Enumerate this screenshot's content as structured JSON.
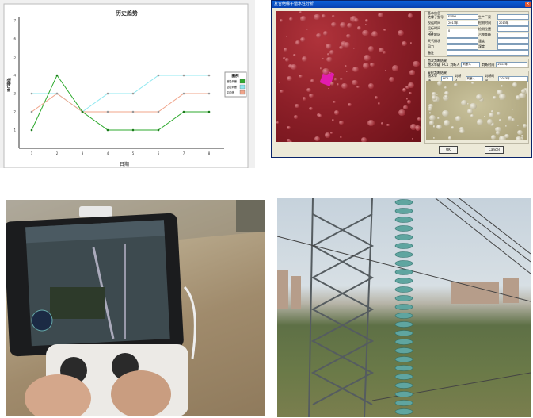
{
  "chart_data": {
    "type": "line",
    "title": "历史趋势",
    "xlabel": "日期",
    "ylabel": "HC等级",
    "x": [
      1,
      2,
      3,
      4,
      5,
      6,
      7,
      8
    ],
    "ylim": [
      0,
      7
    ],
    "yticks": [
      1,
      2,
      3,
      4,
      5,
      6,
      7
    ],
    "grid": false,
    "legend_title": "图例",
    "legend_placement": "right",
    "series": [
      {
        "name": "首检判断",
        "color": "#2eaa2e",
        "values": [
          1,
          4,
          2,
          1,
          1,
          1,
          2,
          2
        ]
      },
      {
        "name": "复检判断",
        "color": "#8fe8f0",
        "values": [
          3,
          3,
          2,
          3,
          3,
          4,
          4,
          4
        ]
      },
      {
        "name": "平均值",
        "color": "#f0a48a",
        "values": [
          2,
          3,
          2,
          2,
          2,
          2,
          3,
          3
        ]
      }
    ]
  },
  "dialog": {
    "title": "复合绝缘子憎水性分析",
    "basic_group": "基本信息",
    "fields": [
      {
        "label": "绝缘子型号",
        "value": "FXBW"
      },
      {
        "label": "生产厂家",
        "value": ""
      },
      {
        "label": "投运时间",
        "value": "2013年"
      },
      {
        "label": "检测时间",
        "value": "2013年"
      },
      {
        "label": "运行时间(天)",
        "value": "0"
      },
      {
        "label": "检测位置",
        "value": ""
      },
      {
        "label": "所在地区",
        "value": ""
      },
      {
        "label": "污秽等级",
        "value": ""
      },
      {
        "label": "天气情况",
        "value": ""
      },
      {
        "label": "温度",
        "value": ""
      },
      {
        "label": "风力",
        "value": ""
      },
      {
        "label": "湿度",
        "value": ""
      },
      {
        "label": "备注",
        "value": ""
      }
    ],
    "first_group": "首次判断结果",
    "second_group": "复检判断结果",
    "grade_label": "憎水等级",
    "grade_value": "HC1",
    "judge_label": "判断人",
    "judge_value": "判断人",
    "time_label": "判断时间",
    "time_value": "2013年",
    "ok_label": "OK",
    "cancel_label": "Cancel"
  }
}
